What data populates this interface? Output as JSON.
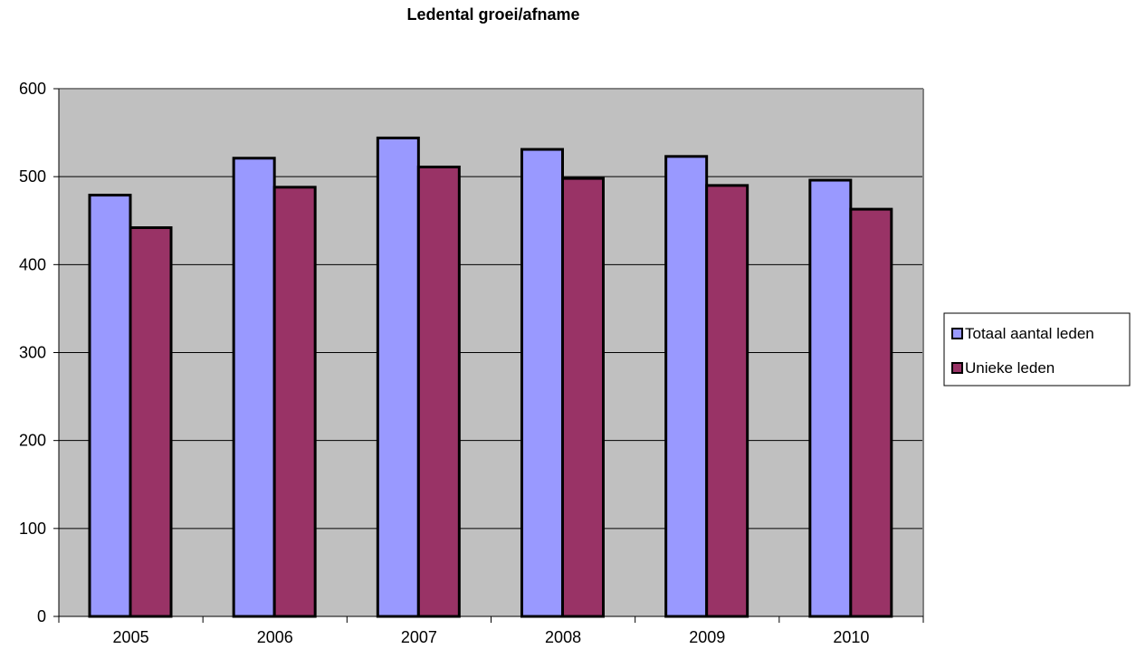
{
  "chart_data": {
    "type": "bar",
    "title": "Ledental groei/afname",
    "xlabel": "",
    "ylabel": "",
    "categories": [
      "2005",
      "2006",
      "2007",
      "2008",
      "2009",
      "2010"
    ],
    "series": [
      {
        "name": "Totaal aantal leden",
        "values": [
          479,
          521,
          544,
          531,
          523,
          496
        ],
        "color": "#9999ff"
      },
      {
        "name": "Unieke leden",
        "values": [
          442,
          488,
          511,
          498,
          490,
          463
        ],
        "color": "#993366"
      }
    ],
    "ylim": [
      0,
      600
    ],
    "yticks": [
      0,
      100,
      200,
      300,
      400,
      500,
      600
    ],
    "grid": true,
    "plot_background": "#c0c0c0",
    "legend_position": "right"
  }
}
